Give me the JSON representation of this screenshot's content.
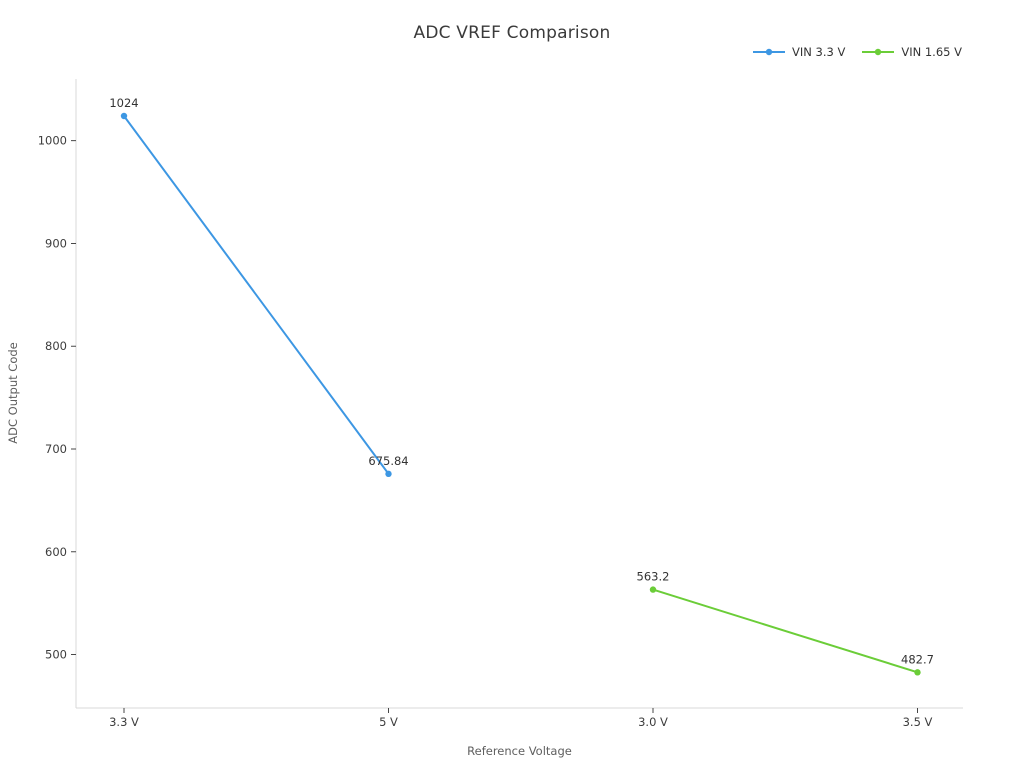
{
  "title": "ADC VREF Comparison",
  "chart_data": {
    "type": "line",
    "title": "ADC VREF Comparison",
    "xlabel": "Reference Voltage",
    "ylabel": "ADC Output Code",
    "categories": [
      "3.3 V",
      "5 V",
      "3.0 V",
      "3.5 V"
    ],
    "yticks": [
      500,
      600,
      700,
      800,
      900,
      1000
    ],
    "ylim": [
      448,
      1060
    ],
    "grid": false,
    "legend_position": "top-right",
    "series": [
      {
        "name": "VIN 3.3 V",
        "color": "#3D97E3",
        "points": [
          {
            "category": "3.3 V",
            "value": 1024,
            "label": "1024"
          },
          {
            "category": "5 V",
            "value": 675.84,
            "label": "675.84"
          }
        ]
      },
      {
        "name": "VIN 1.65 V",
        "color": "#6BCD38",
        "points": [
          {
            "category": "3.0 V",
            "value": 563.2,
            "label": "563.2"
          },
          {
            "category": "3.5 V",
            "value": 482.7,
            "label": "482.7"
          }
        ]
      }
    ],
    "colors": {
      "spine": "#d9d9d9",
      "tick_mark": "#333333",
      "tick_label": "#3d3d3d",
      "point_label": "#333333",
      "title_text": "#3a3a3a",
      "axis_title_text": "#5f5f5f"
    }
  }
}
